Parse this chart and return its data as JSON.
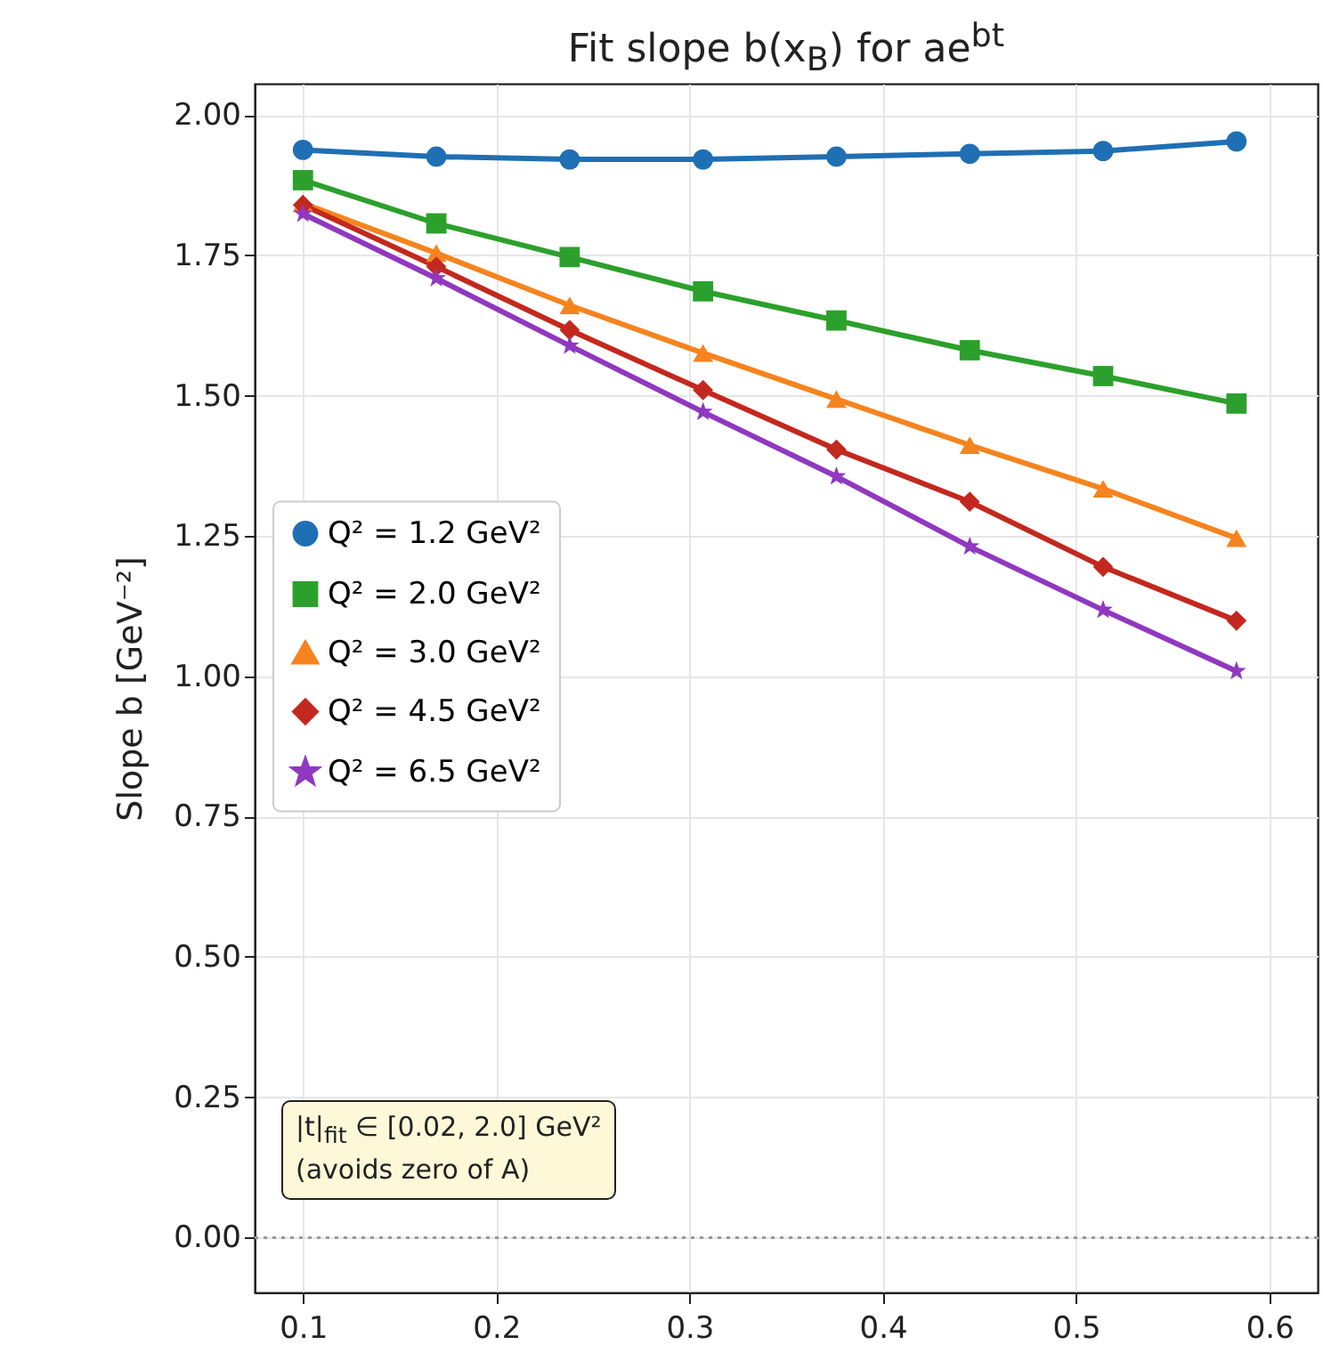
{
  "chart_data": {
    "type": "line",
    "title": "Fit slope b(x$_{B}$) for ae$^{bt}$",
    "ylabel": "Slope b  [GeV⁻²]",
    "x": [
      0.1,
      0.169,
      0.238,
      0.307,
      0.376,
      0.445,
      0.514,
      0.583
    ],
    "series": [
      {
        "name": "Q² = 1.2 GeV²",
        "color": "#1f6fb4",
        "marker": "circle",
        "values": [
          1.938,
          1.926,
          1.921,
          1.921,
          1.926,
          1.931,
          1.936,
          1.953
        ]
      },
      {
        "name": "Q² = 2.0 GeV²",
        "color": "#2ca02c",
        "marker": "square",
        "values": [
          1.884,
          1.807,
          1.747,
          1.686,
          1.634,
          1.581,
          1.535,
          1.486
        ]
      },
      {
        "name": "Q² = 3.0 GeV²",
        "color": "#f5841f",
        "marker": "triangle",
        "values": [
          1.843,
          1.754,
          1.661,
          1.576,
          1.494,
          1.412,
          1.334,
          1.246
        ]
      },
      {
        "name": "Q² = 4.5 GeV²",
        "color": "#c3281e",
        "marker": "diamond",
        "values": [
          1.84,
          1.73,
          1.617,
          1.51,
          1.404,
          1.311,
          1.195,
          1.099
        ]
      },
      {
        "name": "Q² = 6.5 GeV²",
        "color": "#9038c0",
        "marker": "star",
        "values": [
          1.824,
          1.709,
          1.589,
          1.471,
          1.356,
          1.231,
          1.118,
          1.009
        ]
      }
    ],
    "xlim": [
      0.075,
      0.625
    ],
    "ylim": [
      -0.098,
      2.056
    ],
    "xticks": [
      0.1,
      0.2,
      0.3,
      0.4,
      0.5,
      0.6
    ],
    "yticks": [
      {
        "value": 0,
        "label": "0.00"
      },
      {
        "value": 0.25,
        "label": "0.25"
      },
      {
        "value": 0.5,
        "label": "0.50"
      },
      {
        "value": 0.75,
        "label": "0.75"
      },
      {
        "value": 1,
        "label": "1.00"
      },
      {
        "value": 1.25,
        "label": "1.25"
      },
      {
        "value": 1.5,
        "label": "1.50"
      },
      {
        "value": 1.75,
        "label": "1.75"
      },
      {
        "value": 2,
        "label": "2.00"
      }
    ],
    "ref_lines": [
      {
        "axis": "y",
        "value": 0,
        "color": "#999999",
        "line_style": "dotted"
      }
    ],
    "annotations": [
      "|t|$_{fit}$ ∈ [0.02, 2.0] GeV²",
      "(avoids zero of A)"
    ],
    "grid": true,
    "legend": "center left",
    "line_style": "solid"
  }
}
